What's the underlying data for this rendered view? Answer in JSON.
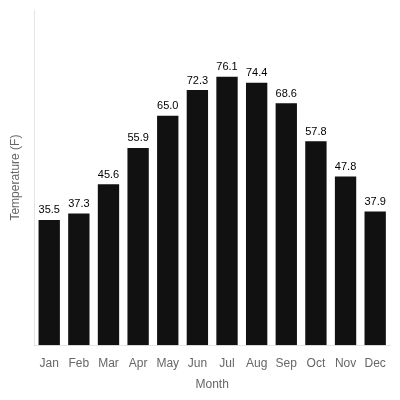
{
  "chart_data": {
    "type": "bar",
    "categories": [
      "Jan",
      "Feb",
      "Mar",
      "Apr",
      "May",
      "Jun",
      "Jul",
      "Aug",
      "Sep",
      "Oct",
      "Nov",
      "Dec"
    ],
    "values": [
      35.5,
      37.3,
      45.6,
      55.9,
      65.0,
      72.3,
      76.1,
      74.4,
      68.6,
      57.8,
      47.8,
      37.9
    ],
    "value_labels": [
      "35.5",
      "37.3",
      "45.6",
      "55.9",
      "65.0",
      "72.3",
      "76.1",
      "74.4",
      "68.6",
      "57.8",
      "47.8",
      "37.9"
    ],
    "color": "#111111",
    "xlabel": "Month",
    "ylabel": "Temperature (F)",
    "ylim": [
      0,
      95
    ],
    "grid": false,
    "data_labels": true,
    "tick_labels": "x"
  }
}
